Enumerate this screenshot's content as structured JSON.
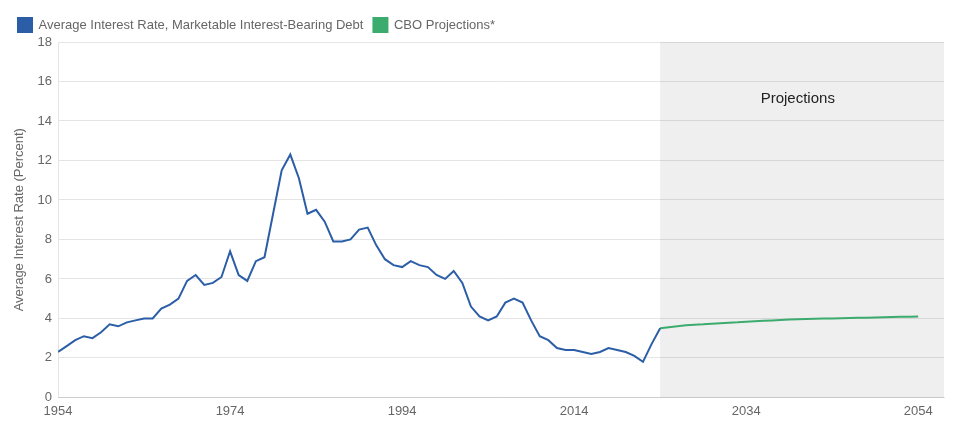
{
  "chart_data": {
    "type": "line",
    "ylabel": "Average Interest Rate (Percent)",
    "series": [
      {
        "name": "Average Interest Rate, Marketable Interest-Bearing Debt",
        "color": "#2B5EA7",
        "x": [
          1954,
          1955,
          1956,
          1957,
          1958,
          1959,
          1960,
          1961,
          1962,
          1963,
          1964,
          1965,
          1966,
          1967,
          1968,
          1969,
          1970,
          1971,
          1972,
          1973,
          1974,
          1975,
          1976,
          1977,
          1978,
          1979,
          1980,
          1981,
          1982,
          1983,
          1984,
          1985,
          1986,
          1987,
          1988,
          1989,
          1990,
          1991,
          1992,
          1993,
          1994,
          1995,
          1996,
          1997,
          1998,
          1999,
          2000,
          2001,
          2002,
          2003,
          2004,
          2005,
          2006,
          2007,
          2008,
          2009,
          2010,
          2011,
          2012,
          2013,
          2014,
          2015,
          2016,
          2017,
          2018,
          2019,
          2020,
          2021,
          2022,
          2023,
          2024
        ],
        "values": [
          2.3,
          2.6,
          2.9,
          3.1,
          3.0,
          3.3,
          3.7,
          3.6,
          3.8,
          3.9,
          4.0,
          4.0,
          4.5,
          4.7,
          5.0,
          5.9,
          6.2,
          5.7,
          5.8,
          6.1,
          7.4,
          6.2,
          5.9,
          6.9,
          7.1,
          9.3,
          11.5,
          12.3,
          11.1,
          9.3,
          9.5,
          8.9,
          7.9,
          7.9,
          8.0,
          8.5,
          8.6,
          7.7,
          7.0,
          6.7,
          6.6,
          6.9,
          6.7,
          6.6,
          6.2,
          6.0,
          6.4,
          5.8,
          4.6,
          4.1,
          3.9,
          4.1,
          4.8,
          5.0,
          4.8,
          3.9,
          3.1,
          2.9,
          2.5,
          2.4,
          2.4,
          2.3,
          2.2,
          2.3,
          2.5,
          2.4,
          2.3,
          2.1,
          1.8,
          2.7,
          3.5
        ]
      },
      {
        "name": "CBO Projections*",
        "color": "#3BAB6E",
        "x": [
          2024,
          2025,
          2026,
          2027,
          2028,
          2029,
          2030,
          2031,
          2032,
          2033,
          2034,
          2035,
          2036,
          2037,
          2038,
          2039,
          2040,
          2041,
          2042,
          2043,
          2044,
          2045,
          2046,
          2047,
          2048,
          2049,
          2050,
          2051,
          2052,
          2053,
          2054
        ],
        "values": [
          3.5,
          3.55,
          3.6,
          3.65,
          3.68,
          3.7,
          3.73,
          3.76,
          3.78,
          3.8,
          3.83,
          3.86,
          3.88,
          3.9,
          3.92,
          3.94,
          3.96,
          3.97,
          3.98,
          3.99,
          4.0,
          4.01,
          4.02,
          4.03,
          4.04,
          4.05,
          4.06,
          4.07,
          4.08,
          4.09,
          4.1
        ]
      }
    ],
    "xlim": [
      1954,
      2057
    ],
    "xticks": [
      1954,
      1974,
      1994,
      2014,
      2034,
      2054
    ],
    "ylim": [
      0,
      18
    ],
    "yticks": [
      0,
      2,
      4,
      6,
      8,
      10,
      12,
      14,
      16,
      18
    ],
    "grid": "y",
    "legend": "upper left",
    "shaded_span": {
      "from": 2024,
      "to": 2057,
      "color": "#EFEFEF"
    },
    "annotations": [
      {
        "text": "Projections",
        "x": 2040,
        "y": 15.5
      }
    ]
  }
}
